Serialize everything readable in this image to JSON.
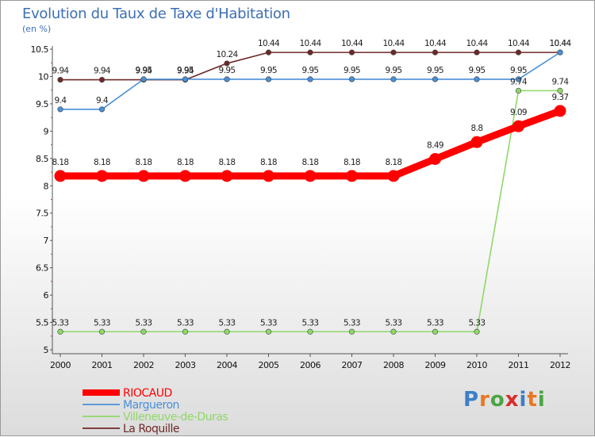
{
  "chart_data": {
    "type": "line",
    "title": "Evolution du Taux de Taxe d'Habitation",
    "unit_label": "(en %)",
    "categories": [
      "2000",
      "2001",
      "2002",
      "2003",
      "2004",
      "2005",
      "2006",
      "2007",
      "2008",
      "2009",
      "2010",
      "2011",
      "2012"
    ],
    "yticks": [
      "5",
      "5.5",
      "6",
      "6.5",
      "7",
      "7.5",
      "8",
      "8.5",
      "9",
      "9.5",
      "10",
      "10.5"
    ],
    "ylim": [
      5,
      10.5
    ],
    "grid": false,
    "legend_position": "bottom-left",
    "series": [
      {
        "name": "RIOCAUD",
        "color": "#ff0000",
        "values": [
          8.18,
          8.18,
          8.18,
          8.18,
          8.18,
          8.18,
          8.18,
          8.18,
          8.18,
          8.49,
          8.8,
          9.09,
          9.37
        ],
        "labels": [
          "8.18",
          "8.18",
          "8.18",
          "8.18",
          "8.18",
          "8.18",
          "8.18",
          "8.18",
          "8.18",
          "8.49",
          "8.8",
          "9.09",
          "9.37"
        ]
      },
      {
        "name": "Margueron",
        "color": "#4a8fd6",
        "values": [
          9.4,
          9.4,
          9.95,
          9.95,
          9.95,
          9.95,
          9.95,
          9.95,
          9.95,
          9.95,
          9.95,
          9.95,
          10.44
        ],
        "labels": [
          "9.4",
          "9.4",
          "9.95",
          "9.95",
          "9.95",
          "9.95",
          "9.95",
          "9.95",
          "9.95",
          "9.95",
          "9.95",
          "9.95",
          "10.44"
        ]
      },
      {
        "name": "Villeneuve-de-Duras",
        "color": "#8ed868",
        "values": [
          5.33,
          5.33,
          5.33,
          5.33,
          5.33,
          5.33,
          5.33,
          5.33,
          5.33,
          5.33,
          5.33,
          9.74,
          9.74
        ],
        "labels": [
          "5.33",
          "5.33",
          "5.33",
          "5.33",
          "5.33",
          "5.33",
          "5.33",
          "5.33",
          "5.33",
          "5.33",
          "5.33",
          "9.74",
          "9.74"
        ]
      },
      {
        "name": "La Roquille",
        "color": "#6e2828",
        "values": [
          9.94,
          9.94,
          9.94,
          9.94,
          10.24,
          10.44,
          10.44,
          10.44,
          10.44,
          10.44,
          10.44,
          10.44,
          10.44
        ],
        "labels": [
          "9.94",
          "9.94",
          "9.94",
          "9.94",
          "10.24",
          "10.44",
          "10.44",
          "10.44",
          "10.44",
          "10.44",
          "10.44",
          "10.44",
          "10.44"
        ]
      }
    ]
  },
  "logo": {
    "letters": [
      "P",
      "r",
      "o",
      "x",
      "i",
      "t",
      "i"
    ],
    "colors": [
      "#3a7fc8",
      "#e87722",
      "#4aa542",
      "#d92b2b",
      "#3a7fc8",
      "#e87722",
      "#4aa542"
    ]
  }
}
